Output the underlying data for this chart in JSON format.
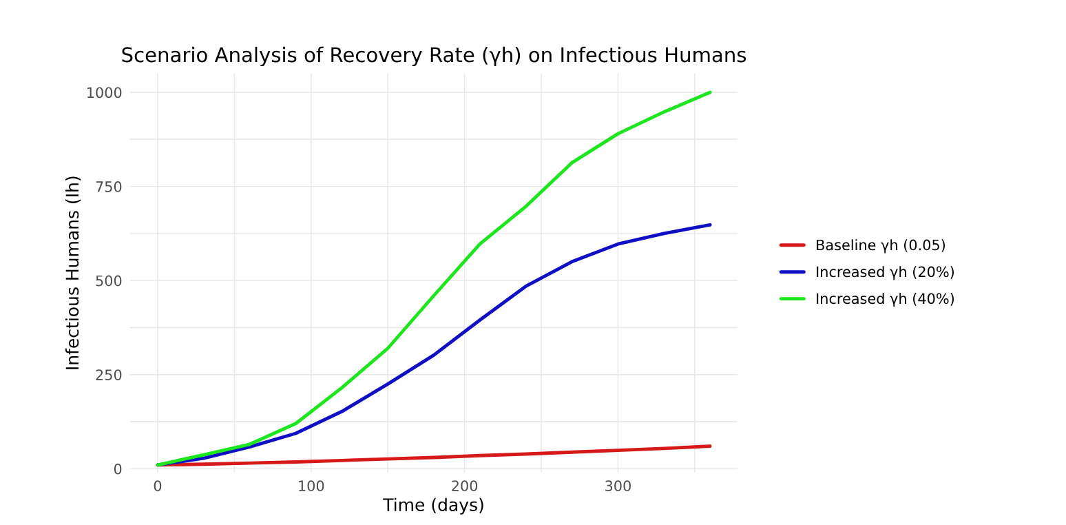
{
  "chart_data": {
    "type": "line",
    "title": "Scenario Analysis of Recovery Rate (γh) on Infectious Humans",
    "xlabel": "Time (days)",
    "ylabel": "Infectious Humans (Ih)",
    "x": [
      0,
      30,
      60,
      90,
      120,
      150,
      180,
      210,
      240,
      270,
      300,
      330,
      360
    ],
    "series": [
      {
        "name": "Baseline γh (0.05)",
        "color": "#d61a1a",
        "values": [
          10,
          12,
          15,
          18,
          22,
          26,
          30,
          35,
          39,
          44,
          49,
          54,
          60
        ]
      },
      {
        "name": "Increased γh (20%)",
        "color": "#0f0fc4",
        "values": [
          10,
          28,
          58,
          94,
          152,
          225,
          302,
          395,
          485,
          550,
          597,
          625,
          648
        ]
      },
      {
        "name": "Increased γh (40%)",
        "color": "#1ee61e",
        "values": [
          10,
          37,
          65,
          120,
          215,
          320,
          460,
          597,
          697,
          813,
          890,
          948,
          1000
        ]
      }
    ],
    "xlim": [
      -18,
      378
    ],
    "xticks": [
      0,
      100,
      200,
      300
    ],
    "ylim": [
      -10,
      1050
    ],
    "yticks": [
      0,
      250,
      500,
      750,
      1000
    ],
    "grid": true,
    "legend": "right",
    "marker": "none",
    "line_style": "solid"
  }
}
